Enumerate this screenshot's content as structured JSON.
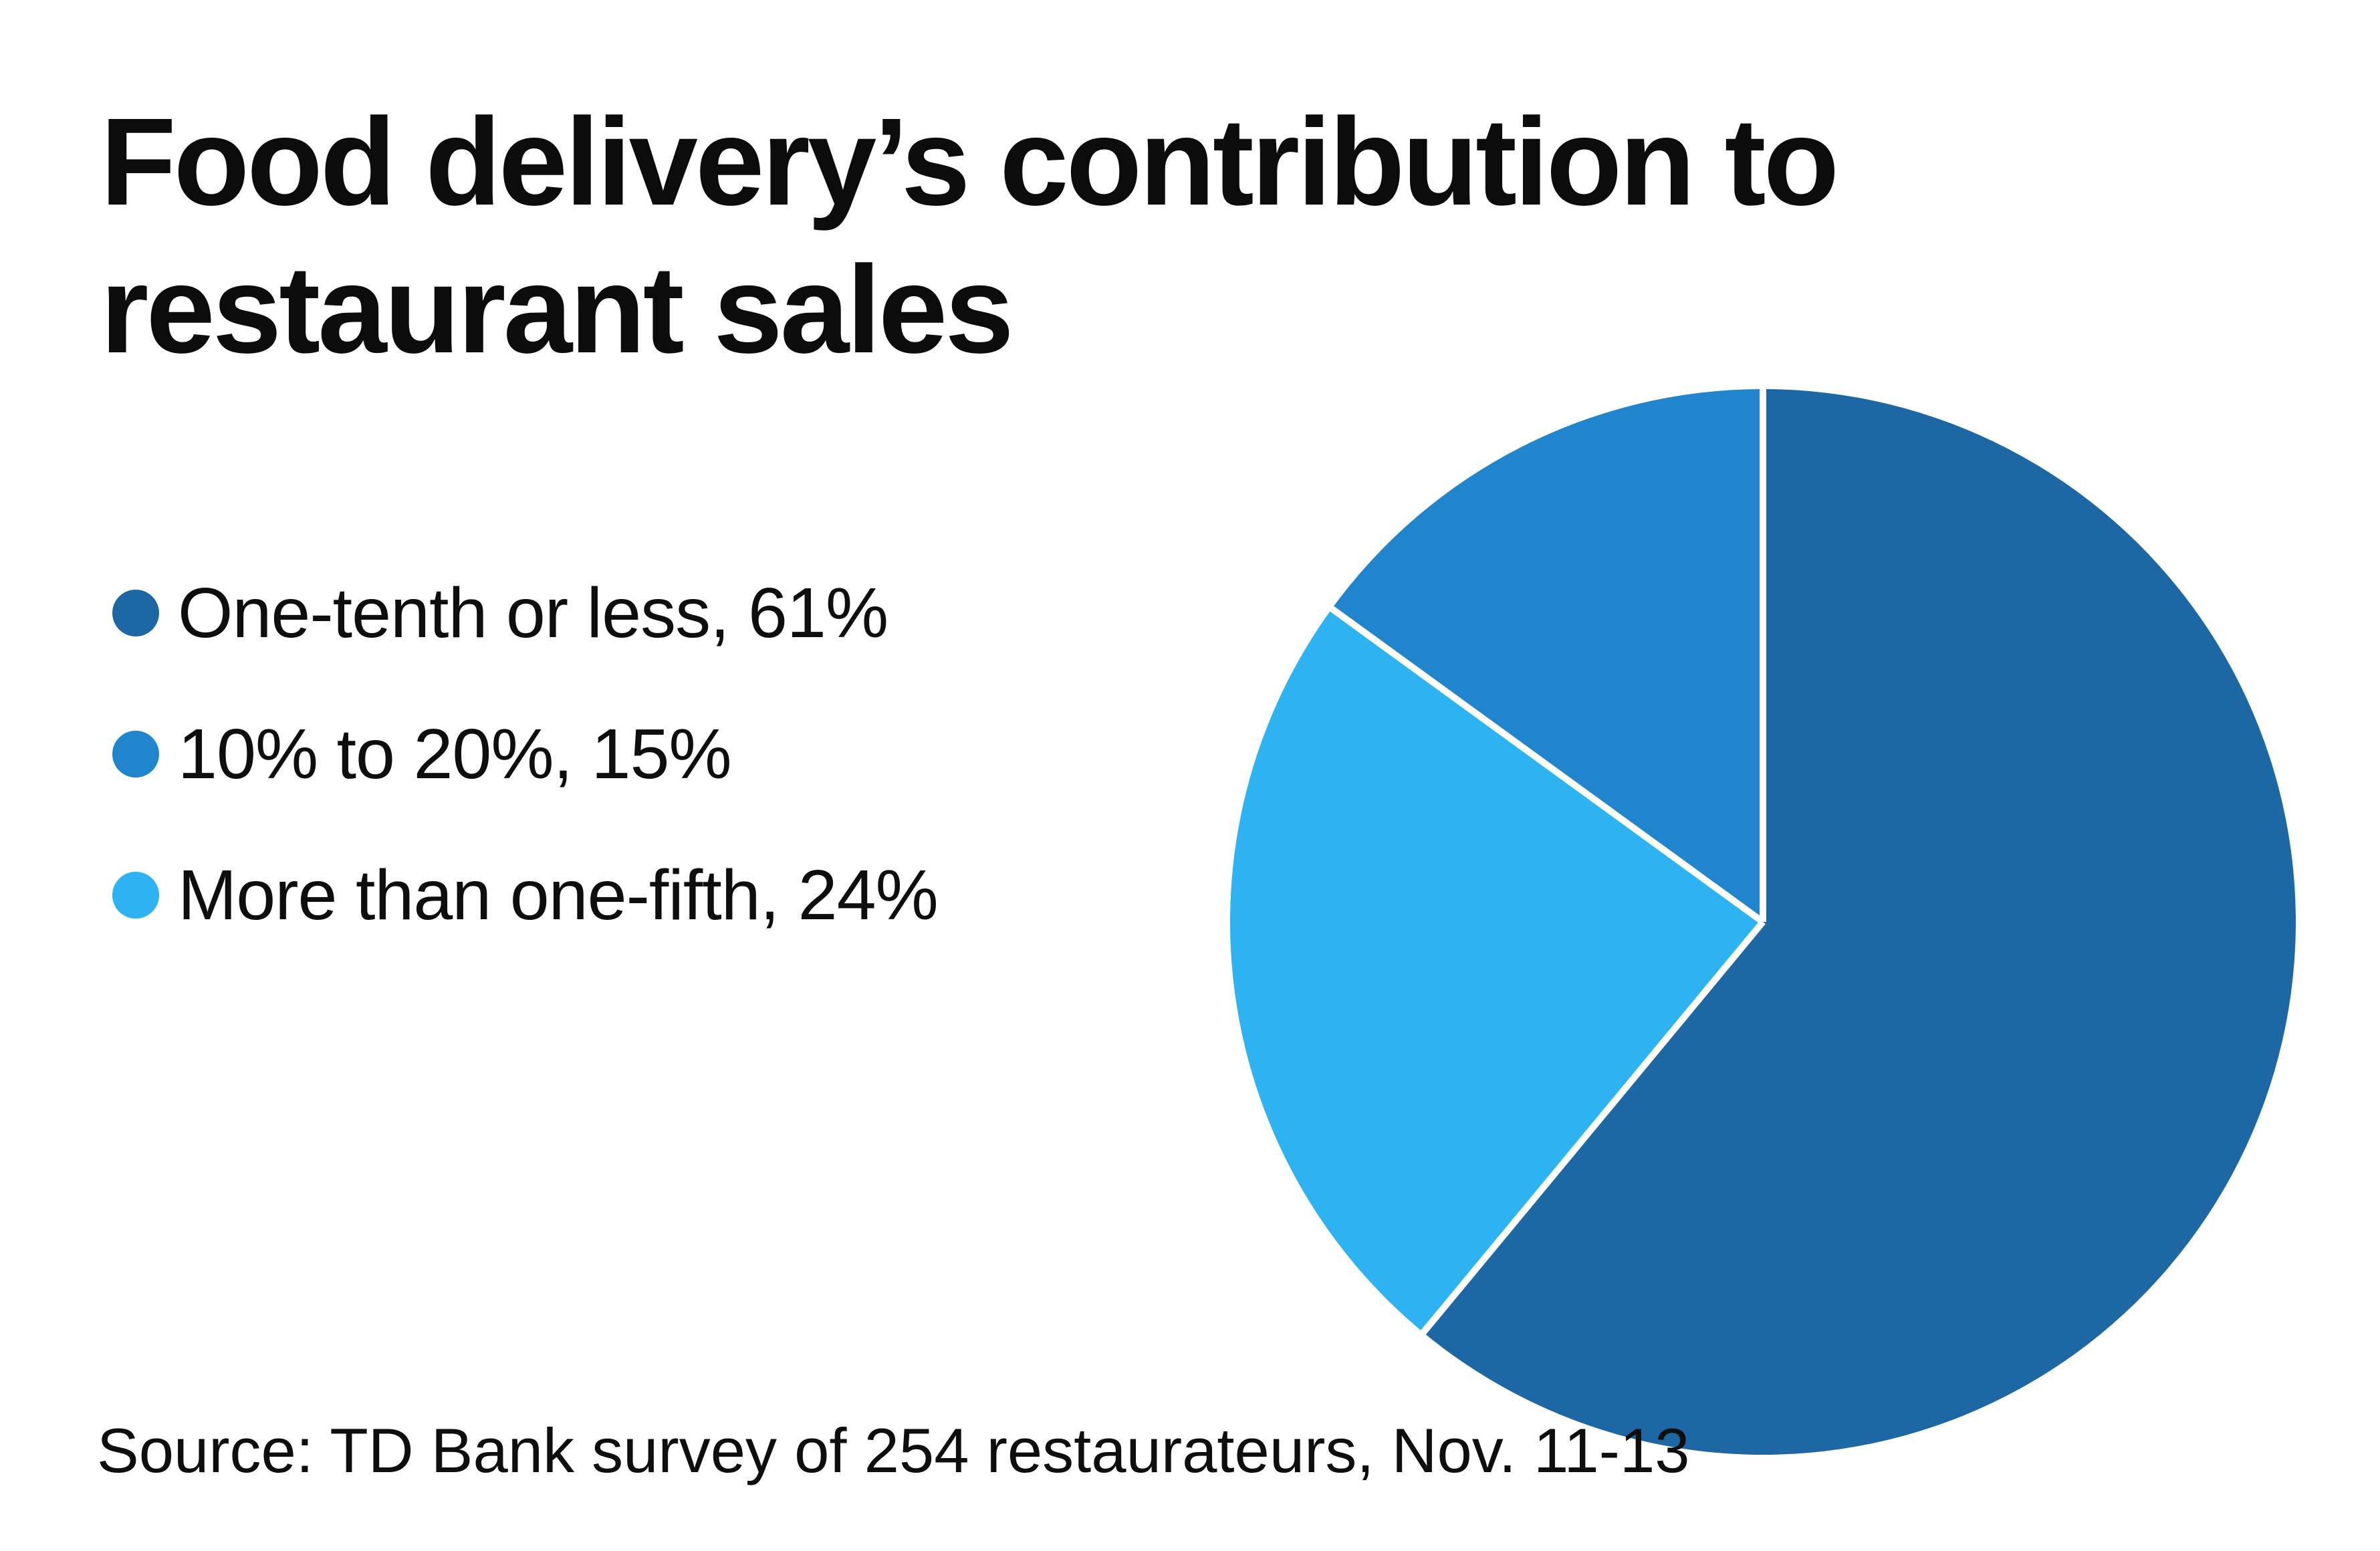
{
  "title": {
    "line1": "Food delivery’s contribution to",
    "line2": "restaurant sales"
  },
  "legend": {
    "items": [
      {
        "text": "One-tenth or less, 61%",
        "color": "#1d68a4"
      },
      {
        "text": "10% to 20%, 15%",
        "color": "#2185cd"
      },
      {
        "text": "More than one-fifth, 24%",
        "color": "#2db3f2"
      }
    ]
  },
  "source": "Source: TD Bank survey of 254 restaurateurs, Nov. 11-13",
  "colors": {
    "background": "#ffffff",
    "separator": "#ffffff",
    "text": "#0c0c0c"
  },
  "chart_data": {
    "type": "pie",
    "title": "Food delivery’s contribution to restaurant sales",
    "slices": [
      {
        "label": "One-tenth or less",
        "value": 61,
        "color": "#1d68a4"
      },
      {
        "label": "10% to 20%",
        "value": 15,
        "color": "#2185cd"
      },
      {
        "label": "More than one-fifth",
        "value": 24,
        "color": "#2db3f2"
      }
    ],
    "start_angle_deg": 0,
    "direction": "clockwise",
    "clockwise_order": [
      0,
      2,
      1
    ],
    "legend_position": "left",
    "source": "Source: TD Bank survey of 254 restaurateurs, Nov. 11-13"
  }
}
